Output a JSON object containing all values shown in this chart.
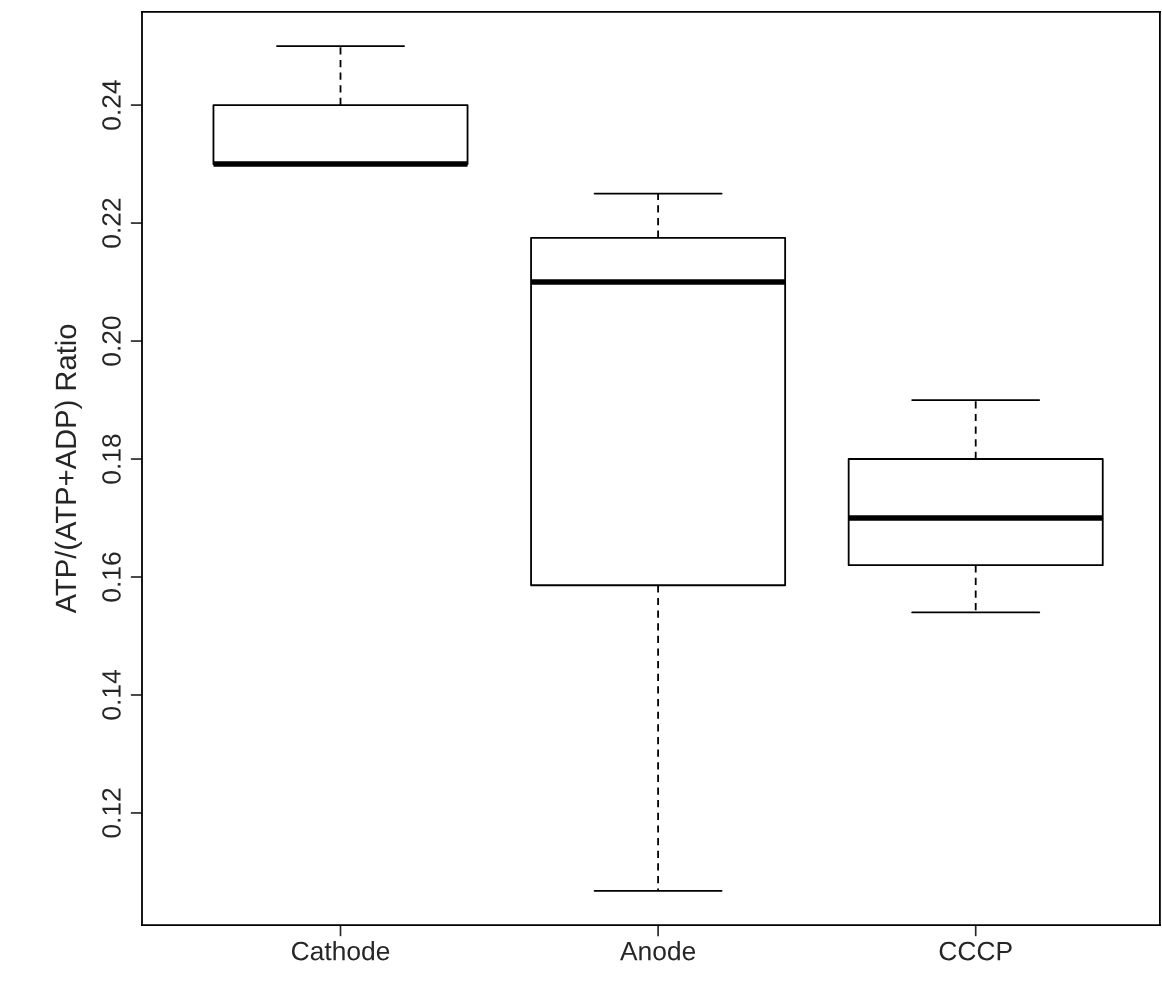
{
  "chart_data": {
    "type": "box",
    "ylabel": "ATP/(ATP+ADP) Ratio",
    "categories": [
      "Cathode",
      "Anode",
      "CCCP"
    ],
    "boxes": [
      {
        "low": 0.23,
        "q1": 0.23,
        "median": 0.23,
        "q3": 0.24,
        "high": 0.25
      },
      {
        "low": 0.1068,
        "q1": 0.1586,
        "median": 0.21,
        "q3": 0.2175,
        "high": 0.225
      },
      {
        "low": 0.154,
        "q1": 0.162,
        "median": 0.17,
        "q3": 0.18,
        "high": 0.19
      }
    ],
    "color": "#000000",
    "ylim": [
      0.101,
      0.2558
    ],
    "yticks": [
      0.12,
      0.14,
      0.16,
      0.18,
      {
        "value": 0.2,
        "label": "0.20"
      },
      0.22,
      0.24
    ],
    "grid": false
  }
}
